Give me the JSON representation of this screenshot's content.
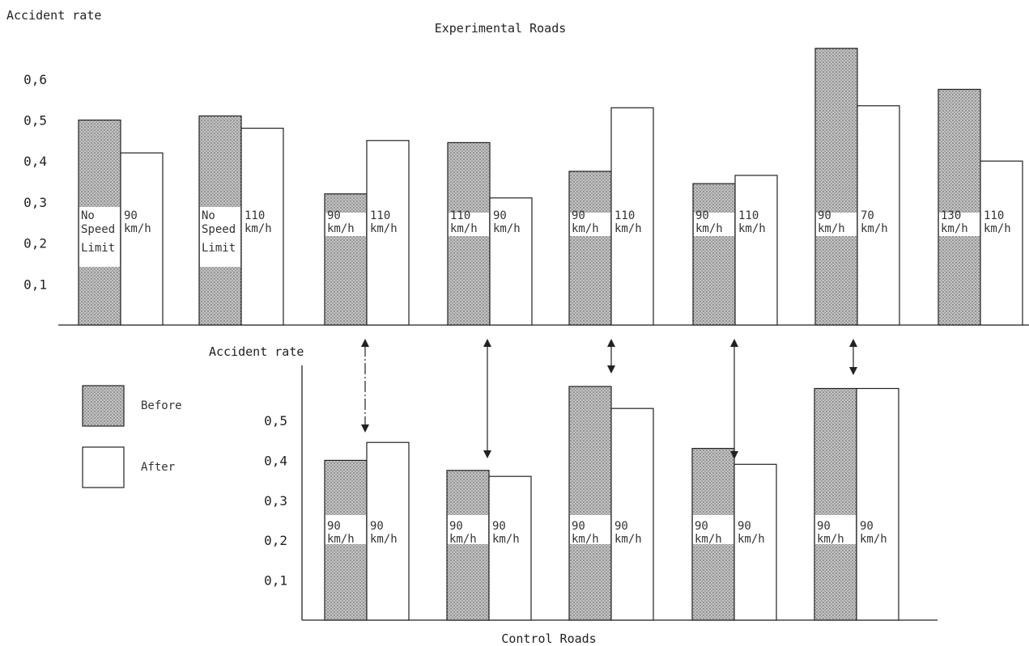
{
  "colors": {
    "before": "#bdbdbd",
    "after": "#ffffff",
    "stroke": "#222222"
  },
  "legend": {
    "before": "Before",
    "after": "After"
  },
  "chart_data": [
    {
      "type": "bar",
      "title": "Experimental Roads",
      "ylabel": "Accident rate",
      "ylim": [
        0,
        0.7
      ],
      "yticks": [
        "0,1",
        "0,2",
        "0,3",
        "0,4",
        "0,5",
        "0,6"
      ],
      "series": [
        {
          "name": "Before",
          "values": [
            0.5,
            0.51,
            0.32,
            0.445,
            0.375,
            0.345,
            0.675,
            0.575
          ]
        },
        {
          "name": "After",
          "values": [
            0.42,
            0.48,
            0.45,
            0.31,
            0.53,
            0.365,
            0.535,
            0.4
          ]
        }
      ],
      "bar_labels": {
        "before": [
          [
            "No",
            "Speed",
            "Limit"
          ],
          [
            "No",
            "Speed",
            "Limit"
          ],
          [
            "90",
            "km/h"
          ],
          [
            "110",
            "km/h"
          ],
          [
            "90",
            "km/h"
          ],
          [
            "90",
            "km/h"
          ],
          [
            "90",
            "km/h"
          ],
          [
            "130",
            "km/h"
          ]
        ],
        "after": [
          [
            "90",
            "km/h"
          ],
          [
            "110",
            "km/h"
          ],
          [
            "110",
            "km/h"
          ],
          [
            "90",
            "km/h"
          ],
          [
            "110",
            "km/h"
          ],
          [
            "110",
            "km/h"
          ],
          [
            "70",
            "km/h"
          ],
          [
            "110",
            "km/h"
          ]
        ]
      }
    },
    {
      "type": "bar",
      "title": "Control Roads",
      "ylabel": "Accident rate",
      "ylim": [
        0,
        0.6
      ],
      "yticks": [
        "0,1",
        "0,2",
        "0,3",
        "0,4",
        "0,5"
      ],
      "series": [
        {
          "name": "Before",
          "values": [
            0.4,
            0.375,
            0.585,
            0.43,
            0.58
          ]
        },
        {
          "name": "After",
          "values": [
            0.445,
            0.36,
            0.53,
            0.39,
            0.58
          ]
        }
      ],
      "bar_labels": {
        "before": [
          [
            "90",
            "km/h"
          ],
          [
            "90",
            "km/h"
          ],
          [
            "90",
            "km/h"
          ],
          [
            "90",
            "km/h"
          ],
          [
            "90",
            "km/h"
          ]
        ],
        "after": [
          [
            "90",
            "km/h"
          ],
          [
            "90",
            "km/h"
          ],
          [
            "90",
            "km/h"
          ],
          [
            "90",
            "km/h"
          ],
          [
            "90",
            "km/h"
          ]
        ]
      }
    }
  ]
}
